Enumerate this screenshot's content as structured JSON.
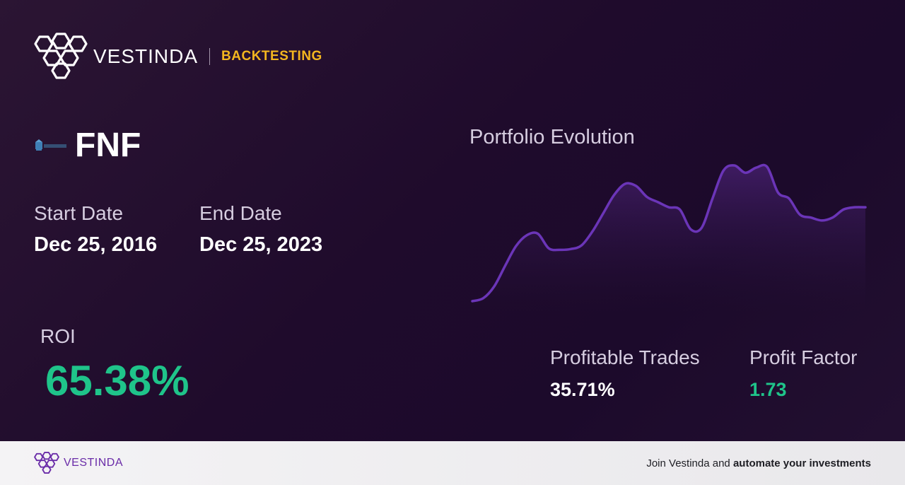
{
  "brand": {
    "name": "VESTINDA",
    "tag": "BACKTESTING"
  },
  "ticker": {
    "symbol": "FNF",
    "logo_icon": "fnf-company-logo-icon"
  },
  "dates": {
    "start_label": "Start Date",
    "start_value": "Dec 25, 2016",
    "end_label": "End Date",
    "end_value": "Dec 25, 2023"
  },
  "roi": {
    "label": "ROI",
    "value": "65.38%"
  },
  "stats": {
    "profitable_trades_label": "Profitable Trades",
    "profitable_trades_value": "35.71%",
    "profit_factor_label": "Profit Factor",
    "profit_factor_value": "1.73"
  },
  "colors": {
    "accent_gold": "#f3b61f",
    "positive_green": "#1fc48a",
    "line_purple": "#6b35b8",
    "footer_purple": "#6a2ca8"
  },
  "chart_data": {
    "type": "area",
    "title": "Portfolio Evolution",
    "xlabel": "",
    "ylabel": "",
    "grid": false,
    "legend": "none",
    "series": [
      {
        "values": [
          0,
          4,
          20,
          48,
          75,
          90,
          92,
          72,
          70,
          71,
          76,
          95,
          120,
          145,
          160,
          157,
          142,
          135,
          128,
          125,
          98,
          100,
          140,
          178,
          185,
          175,
          182,
          183,
          148,
          140,
          118,
          114,
          110,
          114,
          125,
          128,
          128
        ]
      }
    ]
  },
  "footer": {
    "brand_name": "VESTINDA",
    "cta_prefix": "Join Vestinda and",
    "cta_bold": "automate your investments"
  }
}
